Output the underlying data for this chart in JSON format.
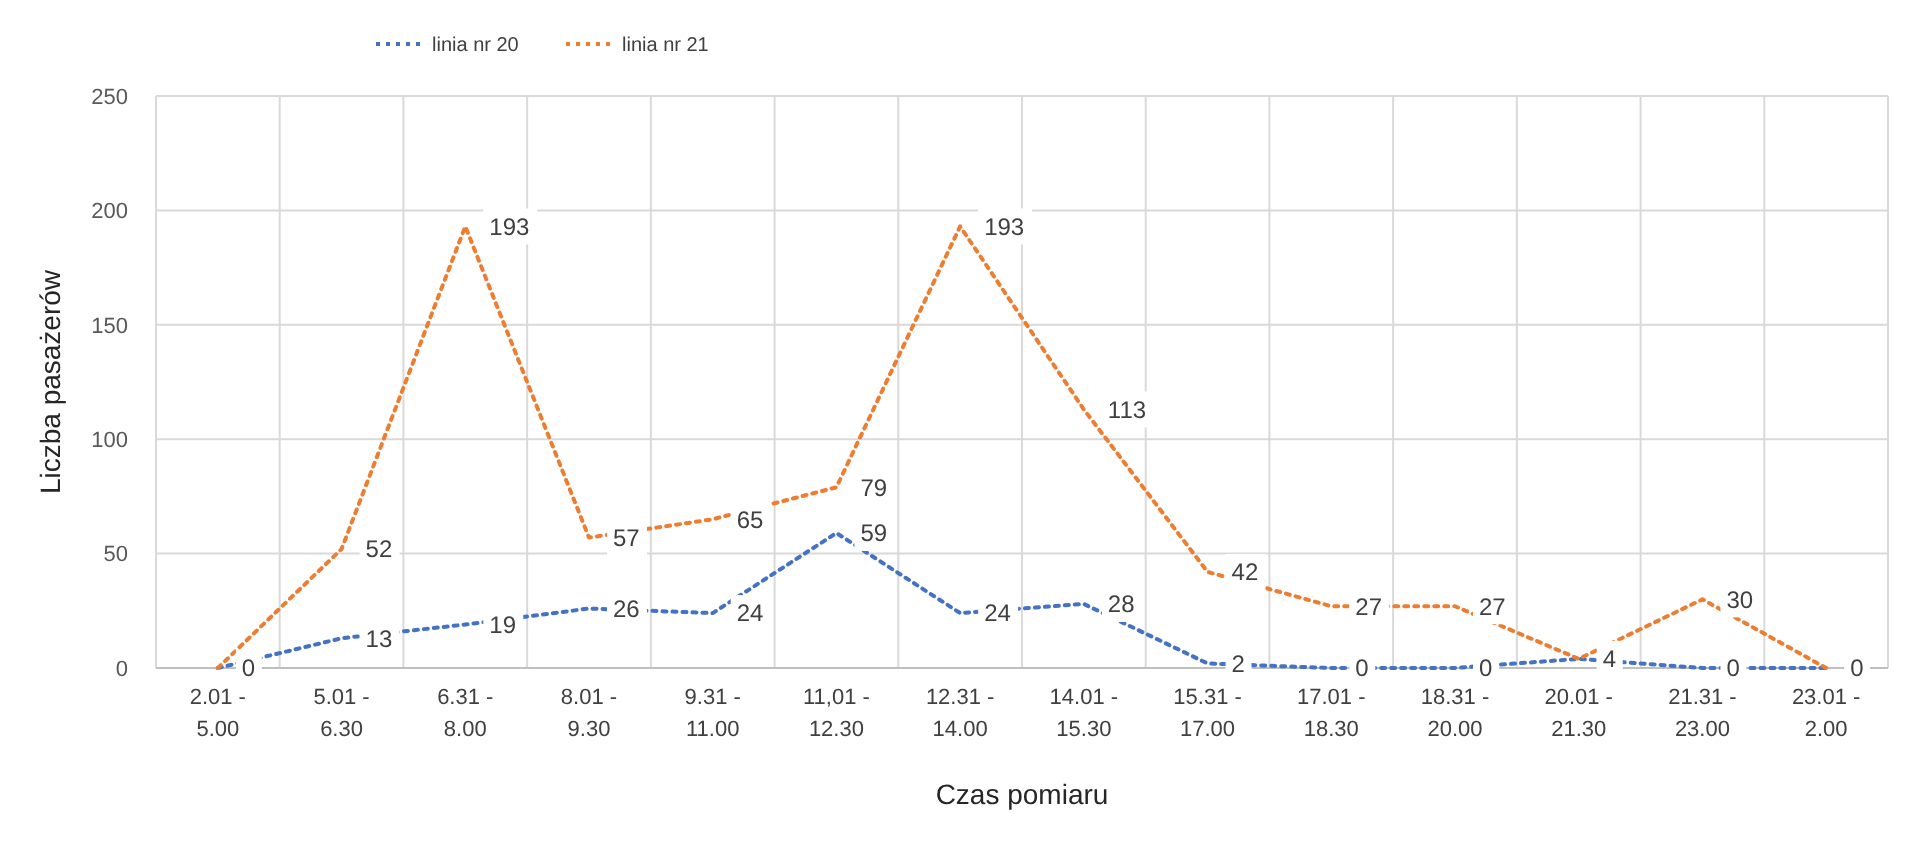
{
  "chart_data": {
    "type": "line",
    "xlabel": "Czas pomiaru",
    "ylabel": "Liczba pasażerów",
    "categories": [
      "2.01 - 5.00",
      "5.01 - 6.30",
      "6.31 - 8.00",
      "8.01 - 9.30",
      "9.31 - 11.00",
      "11,01 - 12.30",
      "12.31 - 14.00",
      "14.01 - 15.30",
      "15.31 - 17.00",
      "17.01 - 18.30",
      "18.31 - 20.00",
      "20.01 - 21.30",
      "21.31 - 23.00",
      "23.01 - 2.00"
    ],
    "series": [
      {
        "name": "linia nr 20",
        "color": "#4472c4",
        "values": [
          0,
          13,
          19,
          26,
          24,
          59,
          24,
          28,
          2,
          0,
          0,
          4,
          0,
          0
        ],
        "value_labels": [
          "0",
          "13",
          "19",
          "26",
          "24",
          "59",
          "24",
          "28",
          "2",
          "0",
          "0",
          "4",
          "0",
          null
        ]
      },
      {
        "name": "linia nr 21",
        "color": "#ed7d31",
        "values": [
          0,
          52,
          193,
          57,
          65,
          79,
          193,
          113,
          42,
          27,
          27,
          4,
          30,
          0
        ],
        "value_labels": [
          null,
          "52",
          "193",
          "57",
          "65",
          "79",
          "193",
          "113",
          "42",
          "27",
          "27",
          null,
          "30",
          "0"
        ]
      }
    ],
    "ylim": [
      0,
      250
    ],
    "yticks": [
      0,
      50,
      100,
      150,
      200,
      250
    ],
    "grid": true,
    "legend": "top left",
    "line_style": "dotted",
    "marker": "none"
  }
}
